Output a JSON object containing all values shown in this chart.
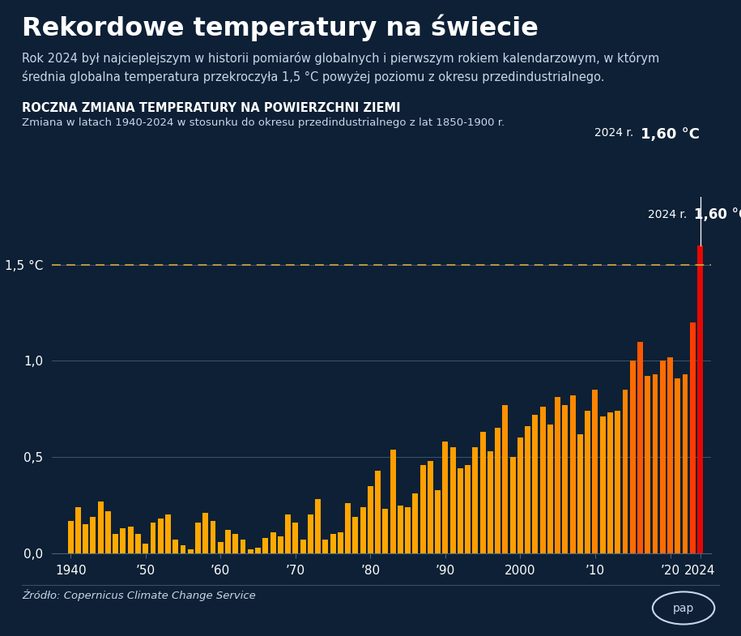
{
  "title": "Rekordowe temperatury na świecie",
  "subtitle": "Rok 2024 był najcieplejszym w historii pomiarów globalnych i pierwszym rokiem kalendarzowym, w którym\nśrednia globalna temperatura przekroczyła 1,5 °C powyżej poziomu z okresu przedindustrialnego.",
  "section_title": "ROCZNA ZMIANA TEMPERATURY NA POWIERZCHNI ZIEMI",
  "section_subtitle": "Zmiana w latach 1940-2024 w stosunku do okresu przedindustrialnego z lat 1850-1900 r.",
  "annotation_label": "2024 r.",
  "annotation_value": "1,60 °C",
  "source": "Źródło: Copernicus Climate Change Service",
  "threshold_label": "1,5 °C",
  "threshold_value": 1.5,
  "bg_color": "#0d2035",
  "text_color": "#ffffff",
  "dashed_line_color": "#c8a040",
  "years": [
    1940,
    1941,
    1942,
    1943,
    1944,
    1945,
    1946,
    1947,
    1948,
    1949,
    1950,
    1951,
    1952,
    1953,
    1954,
    1955,
    1956,
    1957,
    1958,
    1959,
    1960,
    1961,
    1962,
    1963,
    1964,
    1965,
    1966,
    1967,
    1968,
    1969,
    1970,
    1971,
    1972,
    1973,
    1974,
    1975,
    1976,
    1977,
    1978,
    1979,
    1980,
    1981,
    1982,
    1983,
    1984,
    1985,
    1986,
    1987,
    1988,
    1989,
    1990,
    1991,
    1992,
    1993,
    1994,
    1995,
    1996,
    1997,
    1998,
    1999,
    2000,
    2001,
    2002,
    2003,
    2004,
    2005,
    2006,
    2007,
    2008,
    2009,
    2010,
    2011,
    2012,
    2013,
    2014,
    2015,
    2016,
    2017,
    2018,
    2019,
    2020,
    2021,
    2022,
    2023,
    2024
  ],
  "values": [
    0.17,
    0.24,
    0.15,
    0.19,
    0.27,
    0.22,
    0.1,
    0.13,
    0.14,
    0.1,
    0.05,
    0.16,
    0.18,
    0.2,
    0.07,
    0.04,
    0.02,
    0.16,
    0.21,
    0.17,
    0.06,
    0.12,
    0.1,
    0.07,
    0.02,
    0.03,
    0.08,
    0.11,
    0.09,
    0.2,
    0.16,
    0.07,
    0.2,
    0.28,
    0.07,
    0.1,
    0.11,
    0.26,
    0.19,
    0.24,
    0.35,
    0.43,
    0.23,
    0.54,
    0.25,
    0.24,
    0.31,
    0.46,
    0.48,
    0.33,
    0.58,
    0.55,
    0.44,
    0.46,
    0.55,
    0.63,
    0.53,
    0.65,
    0.77,
    0.5,
    0.6,
    0.66,
    0.72,
    0.76,
    0.67,
    0.81,
    0.77,
    0.82,
    0.62,
    0.74,
    0.85,
    0.71,
    0.73,
    0.74,
    0.85,
    1.0,
    1.1,
    0.92,
    0.93,
    1.0,
    1.02,
    0.91,
    0.93,
    1.2,
    1.6
  ]
}
